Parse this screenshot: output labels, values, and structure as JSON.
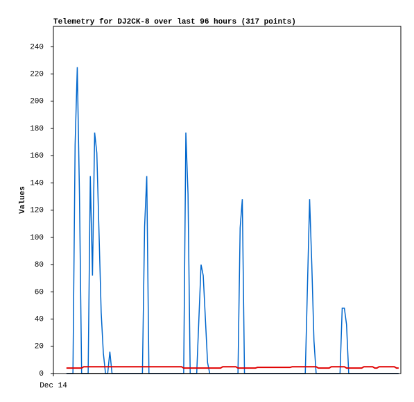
{
  "chart_data": {
    "type": "line",
    "title": "Telemetry for DJ2CK-8 over last 96 hours (317 points)",
    "y_label": "Values",
    "categories": [
      "Dec 14",
      null,
      null,
      null,
      null,
      null,
      null,
      null,
      null,
      null,
      null,
      null,
      null,
      null,
      null,
      null,
      null,
      null,
      null,
      null,
      null,
      null,
      null,
      null,
      null,
      null,
      null,
      null,
      null,
      null,
      null,
      null,
      null,
      null,
      null,
      null,
      null,
      null,
      null,
      null,
      null,
      null,
      null,
      null,
      null,
      null,
      null,
      null,
      null,
      null,
      null,
      null,
      null,
      null,
      null,
      null,
      null,
      null,
      null,
      null,
      null,
      null,
      null,
      null,
      null,
      null,
      null,
      null,
      null,
      null,
      null,
      null,
      null,
      null,
      null,
      null,
      null,
      null,
      null,
      null,
      null,
      null,
      null,
      null,
      null,
      null,
      null,
      null,
      null,
      null,
      null,
      null,
      null,
      null,
      null,
      null,
      null,
      null,
      null,
      null,
      null,
      null,
      null,
      null,
      null,
      null,
      null,
      null,
      null,
      null,
      null,
      null,
      null,
      null,
      null,
      null,
      null,
      null,
      null,
      null,
      null,
      null,
      null,
      null,
      null,
      null,
      null,
      null,
      null,
      null,
      null,
      null,
      null,
      null,
      null,
      null,
      null,
      null,
      null,
      null,
      null,
      null,
      null,
      null,
      null,
      null,
      null,
      null,
      null,
      null,
      null,
      null,
      null,
      null,
      null,
      null,
      null,
      null,
      null,
      null
    ],
    "series": [
      {
        "color": "#0066cc",
        "values": [
          null,
          null,
          null,
          null,
          null,
          null,
          0,
          0,
          0,
          0,
          168,
          225,
          132,
          0,
          0,
          0,
          0,
          145,
          72,
          177,
          162,
          104,
          45,
          15,
          0,
          0,
          16,
          0,
          0,
          0,
          0,
          0,
          0,
          0,
          0,
          0,
          0,
          0,
          0,
          0,
          0,
          0,
          108,
          145,
          0,
          0,
          0,
          0,
          0,
          0,
          0,
          0,
          0,
          0,
          0,
          0,
          0,
          0,
          0,
          0,
          0,
          177,
          132,
          0,
          0,
          0,
          0,
          40,
          80,
          72,
          40,
          8,
          0,
          0,
          0,
          0,
          0,
          0,
          0,
          0,
          0,
          0,
          0,
          0,
          0,
          0,
          107,
          128,
          0,
          0,
          0,
          0,
          0,
          0,
          0,
          0,
          0,
          0,
          0,
          0,
          0,
          0,
          0,
          0,
          0,
          0,
          0,
          0,
          0,
          0,
          0,
          0,
          0,
          0,
          0,
          0,
          0,
          64,
          128,
          80,
          24,
          0,
          0,
          0,
          0,
          0,
          0,
          0,
          0,
          0,
          0,
          0,
          0,
          48,
          48,
          36,
          0,
          0,
          0,
          0,
          0,
          0,
          0,
          0,
          0,
          0,
          0,
          0,
          0,
          0,
          0,
          0,
          0,
          0,
          0,
          0,
          0,
          0,
          0,
          0
        ]
      },
      {
        "color": "#e00000",
        "values": [
          null,
          null,
          null,
          null,
          null,
          null,
          4,
          4,
          4,
          4,
          4,
          4,
          4,
          4,
          5,
          5,
          5,
          5,
          5,
          5,
          5,
          5,
          5,
          5,
          5,
          5,
          5,
          5,
          5,
          5,
          5,
          5,
          5,
          5,
          5,
          5,
          5,
          5,
          5,
          5,
          5,
          5,
          5,
          5,
          5,
          5,
          5,
          5,
          5,
          5,
          5,
          5,
          5,
          5,
          5,
          5,
          5,
          5,
          5,
          5,
          4,
          4,
          4,
          4,
          4,
          4,
          4,
          4,
          4,
          4,
          4,
          4,
          4,
          4,
          4,
          4,
          4,
          4,
          5,
          5,
          5,
          5,
          5,
          5,
          5,
          4,
          4,
          4,
          4,
          4,
          4,
          4,
          4,
          4,
          4.5,
          4.5,
          4.5,
          4.5,
          4.5,
          4.5,
          4.5,
          4.5,
          4.5,
          4.5,
          4.5,
          4.5,
          4.5,
          4.5,
          4.5,
          4.5,
          5,
          5,
          5,
          5,
          5,
          5,
          5,
          5,
          5,
          5,
          5,
          5,
          4,
          4,
          4,
          4,
          4,
          4,
          5,
          5,
          5,
          5,
          5,
          5,
          5,
          4,
          4,
          4,
          4,
          4,
          4,
          4,
          4,
          5,
          5,
          5,
          5,
          5,
          4,
          4,
          5,
          5,
          5,
          5,
          5,
          5,
          5,
          5,
          4,
          4
        ]
      },
      {
        "color": "#000000",
        "values": [
          null,
          null,
          null,
          null,
          null,
          null,
          0,
          0,
          0,
          0,
          0,
          0,
          0,
          0,
          0,
          0,
          0,
          0,
          0,
          0,
          0,
          0,
          0,
          0,
          0,
          0,
          0,
          0,
          0,
          0,
          0,
          0,
          0,
          0,
          0,
          0,
          0,
          0,
          0,
          0,
          0,
          0,
          0,
          0,
          0,
          0,
          0,
          0,
          0,
          0,
          0,
          0,
          0,
          0,
          0,
          0,
          0,
          0,
          0,
          0,
          0,
          0,
          0,
          0,
          0,
          0,
          0,
          0,
          0,
          0,
          0,
          0,
          0,
          0,
          0,
          0,
          0,
          0,
          0,
          0,
          0,
          0,
          0,
          0,
          0,
          0,
          0,
          0,
          0,
          0,
          0,
          0,
          0,
          0,
          0,
          0,
          0,
          0,
          0,
          0,
          0,
          0,
          0,
          0,
          0,
          0,
          0,
          0,
          0,
          0,
          0,
          0,
          0,
          0,
          0,
          0,
          0,
          0,
          0,
          0,
          0,
          0,
          0,
          0,
          0,
          0,
          0,
          0,
          0,
          0,
          0,
          0,
          0,
          0,
          0,
          0,
          0,
          0,
          0,
          0,
          0,
          0,
          0,
          0,
          0,
          0,
          0,
          0,
          0,
          0,
          0,
          0,
          0,
          0,
          0,
          0,
          0,
          0,
          0,
          0
        ]
      }
    ],
    "ylim": [
      0,
      255
    ],
    "yticks": [
      0,
      20,
      40,
      60,
      80,
      100,
      120,
      140,
      160,
      180,
      200,
      220,
      240
    ]
  }
}
